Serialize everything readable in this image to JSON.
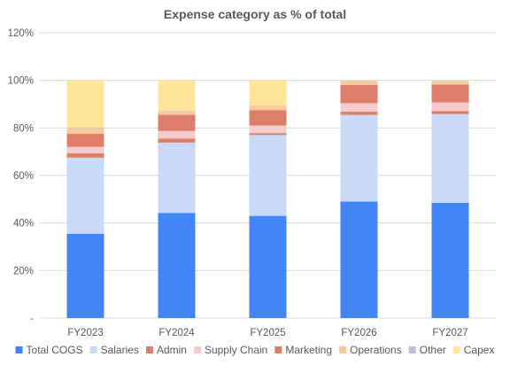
{
  "chart_data": {
    "type": "bar",
    "stacked": true,
    "title": "Expense category as % of total",
    "categories": [
      "FY2023",
      "FY2024",
      "FY2025",
      "FY2026",
      "FY2027"
    ],
    "ylim": [
      0,
      120
    ],
    "yticks": [
      {
        "value": 0,
        "label": "-"
      },
      {
        "value": 20,
        "label": "20%"
      },
      {
        "value": 40,
        "label": "40%"
      },
      {
        "value": 60,
        "label": "60%"
      },
      {
        "value": 80,
        "label": "80%"
      },
      {
        "value": 100,
        "label": "100%"
      },
      {
        "value": 120,
        "label": "120%"
      }
    ],
    "grid": true,
    "legend_position": "bottom",
    "series": [
      {
        "name": "Total COGS",
        "color": "#4285f4",
        "values": [
          35.5,
          44.2,
          43.0,
          49.0,
          48.5
        ]
      },
      {
        "name": "Salaries",
        "color": "#c9daf8",
        "values": [
          32.0,
          29.6,
          34.0,
          36.5,
          37.3
        ]
      },
      {
        "name": "Admin",
        "color": "#dd7e6b",
        "values": [
          1.8,
          1.7,
          0.8,
          1.3,
          1.3
        ]
      },
      {
        "name": "Supply Chain",
        "color": "#f4cccc",
        "values": [
          2.7,
          3.2,
          3.2,
          3.6,
          3.6
        ]
      },
      {
        "name": "Marketing",
        "color": "#dd7e6b",
        "values": [
          5.5,
          6.8,
          6.4,
          7.6,
          7.6
        ]
      },
      {
        "name": "Operations",
        "color": "#f9cb9c",
        "values": [
          2.5,
          1.6,
          1.8,
          1.5,
          1.2
        ]
      },
      {
        "name": "Other",
        "color": "#b7c3dc",
        "values": [
          0.2,
          0.2,
          0.2,
          0.2,
          0.2
        ]
      },
      {
        "name": "Capex",
        "color": "#ffe599",
        "values": [
          19.8,
          12.7,
          10.6,
          0.3,
          0.3
        ]
      }
    ]
  }
}
